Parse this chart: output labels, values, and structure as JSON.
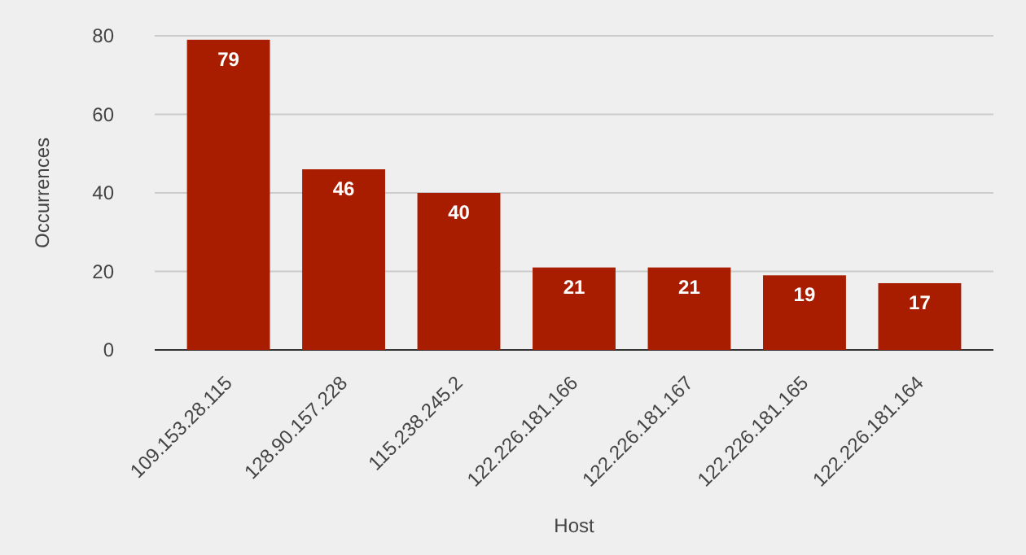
{
  "chart_data": {
    "type": "bar",
    "xlabel": "Host",
    "ylabel": "Occurrences",
    "categories": [
      "109.153.28.115",
      "128.90.157.228",
      "115.238.245.2",
      "122.226.181.166",
      "122.226.181.167",
      "122.226.181.165",
      "122.226.181.164"
    ],
    "values": [
      79,
      46,
      40,
      21,
      21,
      19,
      17
    ],
    "color": "#a81c00",
    "ylim": [
      0,
      80
    ],
    "yticks": [
      0,
      20,
      40,
      60,
      80
    ],
    "grid": "y",
    "data_labels": true
  }
}
